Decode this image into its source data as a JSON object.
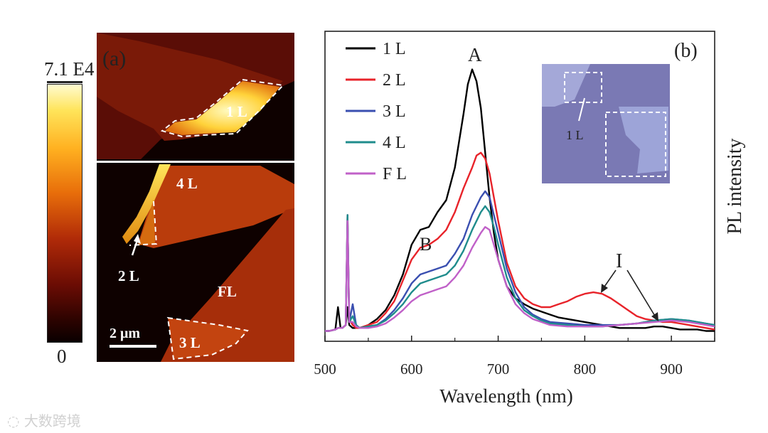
{
  "colorbar": {
    "max_label": "7.1 E4",
    "min_label": "0"
  },
  "panel_a": {
    "letter": "(a)",
    "labels": {
      "one_l": "1 L",
      "four_l": "4 L",
      "two_l": "2 L",
      "few_l": "FL",
      "three_l": "3 L"
    },
    "scale_bar": "2 μm"
  },
  "panel_b": {
    "letter": "(b)",
    "peak_labels": {
      "a": "A",
      "b": "B",
      "i": "I"
    },
    "inset_label": "1 L"
  },
  "chart_data": {
    "type": "line",
    "title": "",
    "xlabel": "Wavelength (nm)",
    "ylabel": "PL intensity",
    "xlim": [
      500,
      950
    ],
    "ylim": [
      0,
      1
    ],
    "xticks": [
      "500",
      "600",
      "700",
      "800",
      "900"
    ],
    "grid": false,
    "legend_position": "top-left",
    "series": [
      {
        "name": "1 L",
        "color": "#000000",
        "x": [
          500,
          505,
          512,
          515,
          518,
          520,
          524,
          526,
          528,
          532,
          536,
          540,
          550,
          560,
          570,
          580,
          590,
          600,
          610,
          620,
          630,
          640,
          650,
          660,
          665,
          670,
          675,
          680,
          685,
          690,
          695,
          700,
          710,
          720,
          730,
          740,
          750,
          760,
          770,
          780,
          790,
          800,
          810,
          820,
          830,
          840,
          850,
          860,
          870,
          880,
          890,
          900,
          910,
          920,
          930,
          940,
          950
        ],
        "y": [
          0.03,
          0.03,
          0.035,
          0.11,
          0.04,
          0.04,
          0.05,
          0.11,
          0.05,
          0.04,
          0.04,
          0.04,
          0.05,
          0.07,
          0.1,
          0.15,
          0.22,
          0.32,
          0.37,
          0.38,
          0.43,
          0.47,
          0.58,
          0.76,
          0.86,
          0.91,
          0.87,
          0.78,
          0.63,
          0.48,
          0.36,
          0.27,
          0.18,
          0.14,
          0.12,
          0.105,
          0.095,
          0.085,
          0.075,
          0.07,
          0.065,
          0.06,
          0.055,
          0.05,
          0.045,
          0.04,
          0.04,
          0.04,
          0.04,
          0.045,
          0.045,
          0.04,
          0.035,
          0.035,
          0.035,
          0.03,
          0.03
        ]
      },
      {
        "name": "2 L",
        "color": "#e8232a",
        "x": [
          500,
          505,
          512,
          515,
          518,
          520,
          524,
          526,
          528,
          532,
          536,
          540,
          550,
          560,
          570,
          580,
          590,
          600,
          610,
          620,
          630,
          640,
          650,
          660,
          670,
          675,
          680,
          685,
          690,
          695,
          700,
          710,
          720,
          730,
          740,
          750,
          760,
          770,
          780,
          790,
          800,
          810,
          820,
          830,
          840,
          850,
          860,
          870,
          880,
          890,
          900,
          910,
          920,
          930,
          940,
          950
        ],
        "y": [
          0.03,
          0.03,
          0.035,
          0.04,
          0.04,
          0.04,
          0.05,
          0.42,
          0.07,
          0.05,
          0.04,
          0.04,
          0.05,
          0.06,
          0.09,
          0.13,
          0.2,
          0.27,
          0.31,
          0.32,
          0.34,
          0.37,
          0.43,
          0.51,
          0.58,
          0.62,
          0.63,
          0.61,
          0.56,
          0.48,
          0.4,
          0.26,
          0.18,
          0.14,
          0.12,
          0.11,
          0.11,
          0.12,
          0.13,
          0.145,
          0.155,
          0.16,
          0.155,
          0.14,
          0.12,
          0.1,
          0.08,
          0.07,
          0.065,
          0.06,
          0.06,
          0.055,
          0.05,
          0.045,
          0.04,
          0.035
        ]
      },
      {
        "name": "3 L",
        "color": "#3a4fb0",
        "x": [
          500,
          505,
          512,
          515,
          518,
          520,
          524,
          526,
          528,
          532,
          536,
          540,
          550,
          560,
          570,
          580,
          590,
          600,
          610,
          620,
          630,
          640,
          650,
          660,
          670,
          680,
          685,
          690,
          695,
          700,
          710,
          720,
          730,
          740,
          750,
          760,
          780,
          800,
          820,
          840,
          860,
          880,
          900,
          920,
          940,
          950
        ],
        "y": [
          0.03,
          0.03,
          0.035,
          0.04,
          0.04,
          0.04,
          0.05,
          0.42,
          0.06,
          0.12,
          0.05,
          0.04,
          0.045,
          0.05,
          0.07,
          0.1,
          0.14,
          0.19,
          0.22,
          0.23,
          0.24,
          0.25,
          0.29,
          0.34,
          0.42,
          0.48,
          0.5,
          0.48,
          0.42,
          0.36,
          0.24,
          0.16,
          0.11,
          0.085,
          0.07,
          0.06,
          0.055,
          0.05,
          0.05,
          0.05,
          0.055,
          0.065,
          0.07,
          0.065,
          0.055,
          0.05
        ]
      },
      {
        "name": "4 L",
        "color": "#1f8c8c",
        "x": [
          500,
          505,
          512,
          515,
          518,
          520,
          524,
          526,
          528,
          532,
          536,
          540,
          550,
          560,
          570,
          580,
          590,
          600,
          610,
          620,
          630,
          640,
          650,
          660,
          670,
          680,
          685,
          690,
          695,
          700,
          710,
          720,
          730,
          740,
          750,
          760,
          780,
          800,
          820,
          840,
          860,
          880,
          900,
          920,
          940,
          950
        ],
        "y": [
          0.03,
          0.03,
          0.035,
          0.04,
          0.04,
          0.04,
          0.05,
          0.42,
          0.06,
          0.08,
          0.05,
          0.04,
          0.045,
          0.05,
          0.065,
          0.09,
          0.12,
          0.16,
          0.19,
          0.2,
          0.21,
          0.22,
          0.25,
          0.3,
          0.37,
          0.43,
          0.45,
          0.43,
          0.38,
          0.32,
          0.21,
          0.14,
          0.1,
          0.08,
          0.065,
          0.055,
          0.05,
          0.045,
          0.045,
          0.05,
          0.055,
          0.065,
          0.07,
          0.065,
          0.055,
          0.05
        ]
      },
      {
        "name": "F L",
        "color": "#c060c8",
        "x": [
          500,
          505,
          512,
          515,
          518,
          520,
          524,
          526,
          528,
          532,
          536,
          540,
          550,
          560,
          570,
          580,
          590,
          600,
          610,
          620,
          630,
          640,
          650,
          660,
          670,
          680,
          685,
          690,
          695,
          700,
          710,
          720,
          730,
          740,
          750,
          760,
          780,
          800,
          820,
          840,
          860,
          880,
          900,
          920,
          940,
          950
        ],
        "y": [
          0.03,
          0.03,
          0.035,
          0.04,
          0.04,
          0.04,
          0.05,
          0.4,
          0.06,
          0.06,
          0.045,
          0.04,
          0.04,
          0.045,
          0.055,
          0.075,
          0.1,
          0.13,
          0.15,
          0.16,
          0.17,
          0.18,
          0.21,
          0.25,
          0.31,
          0.36,
          0.38,
          0.37,
          0.32,
          0.27,
          0.18,
          0.12,
          0.09,
          0.07,
          0.06,
          0.05,
          0.045,
          0.045,
          0.045,
          0.05,
          0.055,
          0.06,
          0.065,
          0.06,
          0.05,
          0.045
        ]
      }
    ]
  },
  "watermark": "大数跨境"
}
